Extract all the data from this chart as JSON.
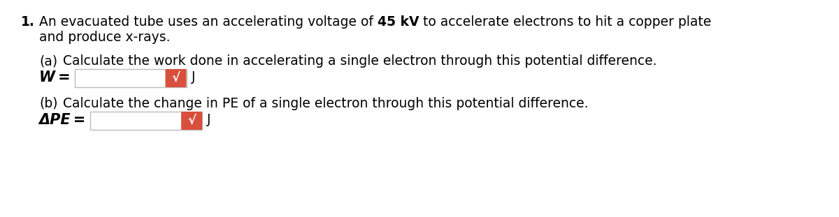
{
  "background_color": "#ffffff",
  "text_color": "#000000",
  "box_border_color": "#bbbbbb",
  "box_fill_color": "#ffffff",
  "check_bg_color": "#d94f3d",
  "check_fg_color": "#ffffff",
  "line1_num": "1.",
  "line1_pre": "An evacuated tube uses an accelerating voltage of ",
  "line1_bold": "45 kV",
  "line1_post": " to accelerate electrons to hit a copper plate",
  "line2": "and produce x-rays.",
  "a_label": "(a)",
  "a_text": "Calculate the work done in accelerating a single electron through this potential difference.",
  "a_var": "W =",
  "a_unit": "J",
  "b_label": "(b)",
  "b_text": "Calculate the change in PE of a single electron through this potential difference.",
  "b_var": "ΔPE =",
  "b_unit": "J",
  "fs": 13.5,
  "fs_var": 15,
  "fs_check": 13
}
